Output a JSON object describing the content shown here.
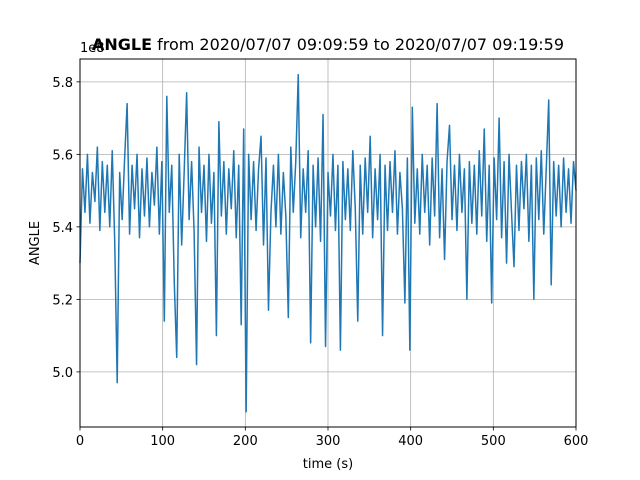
{
  "chart_data": {
    "type": "line",
    "title": {
      "name": "ANGLE",
      "rest": "from 2020/07/07 09:09:59 to 2020/07/07 09:19:59"
    },
    "x_label": "time (s)",
    "y_label": "ANGLE",
    "y_offset_label": "1e8",
    "color": "#1f77b4",
    "grid": true,
    "xlim": [
      0,
      600
    ],
    "xticks": [
      0,
      100,
      200,
      300,
      400,
      500,
      600
    ],
    "ylim": [
      4.848,
      5.863
    ],
    "yticks": [
      {
        "value": 5,
        "label": "5.0"
      },
      5.2,
      5.4,
      5.6,
      5.8
    ],
    "x": [
      0,
      3,
      6,
      9,
      12,
      15,
      18,
      21,
      24,
      27,
      30,
      33,
      36,
      39,
      42,
      45,
      48,
      51,
      54,
      57,
      60,
      63,
      66,
      69,
      72,
      75,
      78,
      81,
      84,
      87,
      90,
      93,
      96,
      99,
      102,
      105,
      108,
      111,
      114,
      117,
      120,
      123,
      126,
      129,
      132,
      135,
      138,
      141,
      144,
      147,
      150,
      153,
      156,
      159,
      162,
      165,
      168,
      171,
      174,
      177,
      180,
      183,
      186,
      189,
      192,
      195,
      198,
      201,
      204,
      207,
      210,
      213,
      216,
      219,
      222,
      225,
      228,
      231,
      234,
      237,
      240,
      243,
      246,
      249,
      252,
      255,
      258,
      261,
      264,
      267,
      270,
      273,
      276,
      279,
      282,
      285,
      288,
      291,
      294,
      297,
      300,
      303,
      306,
      309,
      312,
      315,
      318,
      321,
      324,
      327,
      330,
      333,
      336,
      339,
      342,
      345,
      348,
      351,
      354,
      357,
      360,
      363,
      366,
      369,
      372,
      375,
      378,
      381,
      384,
      387,
      390,
      393,
      396,
      399,
      402,
      405,
      408,
      411,
      414,
      417,
      420,
      423,
      426,
      429,
      432,
      435,
      438,
      441,
      444,
      447,
      450,
      453,
      456,
      459,
      462,
      465,
      468,
      471,
      474,
      477,
      480,
      483,
      486,
      489,
      492,
      495,
      498,
      501,
      504,
      507,
      510,
      513,
      516,
      519,
      522,
      525,
      528,
      531,
      534,
      537,
      540,
      543,
      546,
      549,
      552,
      555,
      558,
      561,
      564,
      567,
      570,
      573,
      576,
      579,
      582,
      585,
      588,
      591,
      594,
      597,
      600
    ],
    "values": [
      5.3,
      5.56,
      5.44,
      5.6,
      5.41,
      5.55,
      5.47,
      5.62,
      5.39,
      5.58,
      5.44,
      5.57,
      5.4,
      5.61,
      5.36,
      4.97,
      5.55,
      5.42,
      5.59,
      5.74,
      5.38,
      5.57,
      5.45,
      5.6,
      5.37,
      5.56,
      5.43,
      5.59,
      5.4,
      5.55,
      5.46,
      5.62,
      5.38,
      5.58,
      5.14,
      5.76,
      5.44,
      5.57,
      5.25,
      5.04,
      5.6,
      5.35,
      5.55,
      5.77,
      5.42,
      5.58,
      5.39,
      5.02,
      5.62,
      5.44,
      5.57,
      5.36,
      5.6,
      5.41,
      5.55,
      5.1,
      5.69,
      5.43,
      5.58,
      5.38,
      5.56,
      5.45,
      5.61,
      5.37,
      5.57,
      5.13,
      5.67,
      4.89,
      5.6,
      5.42,
      5.58,
      5.39,
      5.56,
      5.65,
      5.35,
      5.59,
      5.17,
      5.44,
      5.57,
      5.4,
      5.6,
      5.38,
      5.55,
      5.43,
      5.15,
      5.62,
      5.44,
      5.58,
      5.82,
      5.37,
      5.56,
      5.44,
      5.61,
      5.08,
      5.57,
      5.4,
      5.59,
      5.36,
      5.71,
      5.07,
      5.55,
      5.43,
      5.6,
      5.39,
      5.57,
      5.06,
      5.58,
      5.42,
      5.56,
      5.39,
      5.61,
      5.45,
      5.14,
      5.57,
      5.38,
      5.59,
      5.44,
      5.65,
      5.37,
      5.56,
      5.42,
      5.6,
      5.1,
      5.57,
      5.39,
      5.58,
      5.44,
      5.61,
      5.38,
      5.55,
      5.45,
      5.19,
      5.59,
      5.06,
      5.73,
      5.41,
      5.56,
      5.38,
      5.6,
      5.44,
      5.57,
      5.35,
      5.59,
      5.43,
      5.74,
      5.37,
      5.56,
      5.31,
      5.58,
      5.68,
      5.42,
      5.57,
      5.39,
      5.6,
      5.44,
      5.56,
      5.2,
      5.58,
      5.41,
      5.57,
      5.38,
      5.61,
      5.43,
      5.67,
      5.36,
      5.57,
      5.19,
      5.59,
      5.42,
      5.7,
      5.37,
      5.58,
      5.3,
      5.6,
      5.44,
      5.29,
      5.57,
      5.39,
      5.58,
      5.45,
      5.6,
      5.36,
      5.57,
      5.2,
      5.59,
      5.42,
      5.61,
      5.38,
      5.56,
      5.75,
      5.24,
      5.58,
      5.43,
      5.57,
      5.4,
      5.59,
      5.44,
      5.56,
      5.41,
      5.58,
      5.5
    ]
  }
}
